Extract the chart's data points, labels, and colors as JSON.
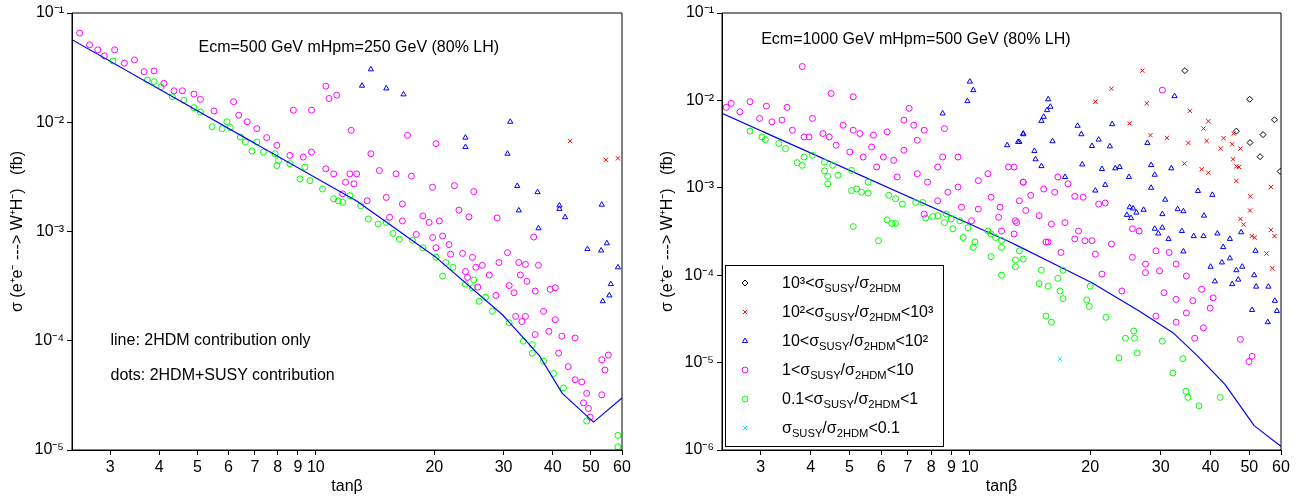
{
  "chart_data": [
    {
      "type": "scatter",
      "xlabel": "tanβ",
      "ylabel": "σ (e⁺e⁻ ---> W⁺H⁻)   (fb)",
      "log": "xy",
      "grid": false,
      "legend": false,
      "annotations": [
        "Ecm=500 GeV mHpm=250 GeV (80% LH)",
        "line: 2HDM contribution only",
        "dots: 2HDM+SUSY contribution"
      ],
      "xlim": [
        2.4,
        60
      ],
      "ylim": [
        1e-05,
        0.1
      ],
      "xticks": [
        3,
        4,
        5,
        6,
        7,
        8,
        9,
        10,
        20,
        30,
        40,
        50,
        60
      ],
      "yticks": [
        {
          "value": 1e-05,
          "label": "10⁻⁵"
        },
        {
          "value": 0.0001,
          "label": "10⁻⁴"
        },
        {
          "value": 0.001,
          "label": "10⁻³"
        },
        {
          "value": 0.01,
          "label": "10⁻²"
        },
        {
          "value": 0.1,
          "label": "10⁻¹"
        }
      ],
      "series": [
        {
          "type": "line",
          "color": "#0000ff",
          "marker": "none",
          "x": [
            2.4,
            12.7,
            20.2,
            29.8,
            36.9,
            42.3,
            50.8,
            60
          ],
          "values": [
            0.057,
            0.0019,
            0.00058,
            0.000173,
            7.4e-05,
            3.3e-05,
            1.8e-05,
            3e-05
          ]
        },
        {
          "type": "scatter",
          "color": "#ff00ff",
          "marker": "circle",
          "x": [
            2.51,
            2.66,
            2.79,
            3.08,
            2.9,
            3.26,
            3.46,
            3.66,
            3.88,
            4.11,
            4.36,
            4.58,
            4.9,
            5.09,
            5.51,
            6.18,
            6.37,
            6.69,
            7.08,
            7.5,
            7.96,
            8.77,
            8.59,
            9.29,
            9.75,
            9.75,
            10.6,
            10.8,
            11.3,
            10.6,
            11.1,
            12.2,
            12.3,
            11.9,
            12.5,
            13.8,
            17.1,
            20.2,
            12.7,
            14.5,
            16.0,
            17.5,
            19.8,
            22.5,
            25.2,
            11.7,
            13.5,
            15.1,
            16.6,
            18.7,
            19.4,
            20.6,
            23.1,
            24.5,
            28.9,
            35.8,
            15.4,
            16.6,
            18.0,
            19.8,
            21.0,
            21.8,
            23.6,
            25.0,
            26.5,
            29.2,
            30.7,
            32.8,
            34.1,
            36.8,
            20.2,
            22.0,
            24.0,
            25.5,
            27.6,
            28.7,
            31.0,
            31.9,
            33.1,
            34.4,
            36.1,
            39.4,
            40.6,
            25.8,
            24.3,
            32.2,
            34.1,
            33.4,
            36.1,
            37.9,
            39.1,
            40.6,
            42.2,
            45.6,
            41.4,
            43.8,
            45.6,
            47.4,
            48.8,
            49.3,
            53.3,
            54.3,
            55.4,
            53.3,
            47.9,
            49.8
          ],
          "values": [
            0.0655,
            0.0512,
            0.046,
            0.046,
            0.0405,
            0.0347,
            0.0372,
            0.029,
            0.0295,
            0.0227,
            0.0194,
            0.0194,
            0.0181,
            0.0162,
            0.0127,
            0.0154,
            0.0116,
            0.0101,
            0.00875,
            0.00723,
            0.00614,
            0.0129,
            0.00497,
            0.0048,
            0.0129,
            0.00533,
            0.0214,
            0.0165,
            0.0177,
            0.00375,
            0.00337,
            0.00337,
            0.00844,
            0.00282,
            0.00273,
            0.00515,
            0.00758,
            0.00637,
            0.00337,
            0.00361,
            0.00337,
            0.00321,
            0.00254,
            0.00263,
            0.00232,
            0.00221,
            0.00191,
            0.00205,
            0.00179,
            0.00139,
            0.00121,
            0.00125,
            0.00157,
            0.00136,
            0.00133,
            0.00089,
            0.00135,
            0.00125,
            0.00094,
            0.00088,
            0.00091,
            0.00076,
            0.00063,
            0.00058,
            0.00049,
            0.00052,
            0.00064,
            0.00052,
            0.0005,
            0.00049,
            0.00071,
            0.00062,
            0.00043,
            0.00047,
            0.0004,
            0.00026,
            0.00032,
            0.000275,
            0.0004,
            0.00035,
            0.000285,
            0.000295,
            0.000305,
            0.00031,
            0.00038,
            0.000167,
            0.000167,
            0.00015,
            0.000114,
            0.000186,
            0.000122,
            0.000156,
            0.00011,
            0.000106,
            7.7e-05,
            5.8e-05,
            4.4e-05,
            4.2e-05,
            3.3e-05,
            2.4e-05,
            6.7e-05,
            5.4e-05,
            7.4e-05,
            3.2e-05,
            2.7e-05,
            2e-05
          ]
        },
        {
          "type": "scatter",
          "color": "#00ff00",
          "marker": "circle",
          "x": [
            3.05,
            3.73,
            3.88,
            4.04,
            4.32,
            4.62,
            4.9,
            5.09,
            5.45,
            5.78,
            5.94,
            6.06,
            6.43,
            6.62,
            6.88,
            7.08,
            7.36,
            7.88,
            7.96,
            8.04,
            8.59,
            9.12,
            9.38,
            9.66,
            10.4,
            11.1,
            11.4,
            11.7,
            12.2,
            13.0,
            13.6,
            14.4,
            15.1,
            15.7,
            16.3,
            17.6,
            18.7,
            20.2,
            21.0,
            21.4,
            22.3,
            24.0,
            25.0,
            25.2,
            26.0,
            27.0,
            28.1,
            31.0,
            33.7,
            35.5,
            35.5,
            37.9,
            40.2,
            42.6,
            48.8,
            58.6,
            58.6
          ],
          "values": [
            0.0364,
            0.0244,
            0.0235,
            0.0211,
            0.0171,
            0.0159,
            0.0136,
            0.0124,
            0.0091,
            0.00875,
            0.0101,
            0.00893,
            0.00733,
            0.00659,
            0.00545,
            0.00659,
            0.00533,
            0.00515,
            0.00402,
            0.00447,
            0.00417,
            0.00303,
            0.00388,
            0.00292,
            0.00245,
            0.00199,
            0.00191,
            0.00185,
            0.00213,
            0.00172,
            0.0013,
            0.00117,
            0.00121,
            0.00096,
            0.00085,
            0.00083,
            0.00071,
            0.00058,
            0.00039,
            0.00052,
            0.00047,
            0.00033,
            0.000305,
            0.00036,
            0.00023,
            0.00025,
            0.000186,
            0.000146,
            9.9e-05,
            9.2e-05,
            7.7e-05,
            6.5e-05,
            5e-05,
            3.7e-05,
            1.84e-05,
            1.36e-05,
            1.07e-05
          ]
        },
        {
          "type": "scatter",
          "color": "#0000ff",
          "marker": "triangle",
          "x": [
            13.8,
            13.1,
            15.1,
            16.7,
            24.0,
            24.0,
            31.2,
            30.7,
            32.5,
            32.8,
            36.6,
            36.8,
            41.6,
            41.6,
            43.0,
            53.3,
            49.0,
            53.1,
            54.9,
            58.6,
            56.2,
            55.7,
            53.6
          ],
          "values": [
            0.0305,
            0.0216,
            0.0204,
            0.018,
            0.00723,
            0.00593,
            0.0101,
            0.00515,
            0.00261,
            0.00156,
            0.00229,
            0.00107,
            0.00173,
            0.00161,
            0.00135,
            0.00176,
            0.00069,
            0.00067,
            0.00078,
            0.00047,
            0.00033,
            0.00026,
            0.00023
          ]
        },
        {
          "type": "scatter",
          "color": "#ff0000",
          "marker": "cross",
          "x": [
            44.3,
            54.6,
            58.6
          ],
          "values": [
            0.00673,
            0.00453,
            0.00467
          ]
        }
      ]
    },
    {
      "type": "scatter",
      "xlabel": "tanβ",
      "ylabel": "σ (e⁺e⁻ ---> W⁺H⁻)   (fb)",
      "log": "xy",
      "grid": false,
      "legend": "bottom left",
      "annotations": [
        "Ecm=1000 GeV mHpm=500 GeV (80% LH)"
      ],
      "xlim": [
        2.4,
        60
      ],
      "ylim": [
        1e-06,
        0.1
      ],
      "xticks": [
        3,
        4,
        5,
        6,
        7,
        8,
        9,
        10,
        20,
        30,
        40,
        50,
        60
      ],
      "yticks": [
        {
          "value": 1e-06,
          "label": "10⁻⁶"
        },
        {
          "value": 1e-05,
          "label": "10⁻⁵"
        },
        {
          "value": 0.0001,
          "label": "10⁻⁴"
        },
        {
          "value": 0.001,
          "label": "10⁻³"
        },
        {
          "value": 0.01,
          "label": "10⁻²"
        },
        {
          "value": 0.1,
          "label": "10⁻¹"
        }
      ],
      "series": [
        {
          "type": "scatter",
          "name": "10³<σ$_{SUSY}$/σ$_{2HDM}$",
          "color": "#000000",
          "marker": "diamond",
          "x": [
            34.5,
            50.1,
            57.8,
            54.1,
            50.2,
            53.2,
            59.7,
            46.4
          ],
          "values": [
            0.0219,
            0.0103,
            0.006,
            0.00406,
            0.00329,
            0.00227,
            0.00154,
            0.00445
          ]
        },
        {
          "type": "scatter",
          "name": "10²<σ$_{SUSY}$/σ$_{2HDM}$<10³",
          "color": "#ff0000",
          "marker": "cross",
          "x": [
            27.0,
            22.6,
            20.6,
            27.7,
            25.1,
            28.3,
            31.1,
            35.5,
            39.5,
            38.4,
            35.2,
            39.1,
            42.4,
            43.1,
            45.3,
            45.7,
            47.5,
            34.4,
            38.0,
            39.5,
            45.5,
            46.4,
            47.1,
            46.4,
            50.3,
            50.2,
            56.6,
            47.5,
            48.4,
            50.7,
            51.6,
            56.6,
            57.8,
            55.2,
            57.1
          ],
          "values": [
            0.0219,
            0.0136,
            0.00966,
            0.00925,
            0.00545,
            0.004,
            0.00372,
            0.0076,
            0.00578,
            0.00476,
            0.00326,
            0.00344,
            0.00281,
            0.00369,
            0.00315,
            0.00418,
            0.00281,
            0.00189,
            0.00163,
            0.00149,
            0.00212,
            0.00176,
            0.00173,
            0.0012,
            0.0008,
            0.00055,
            0.00102,
            0.00044,
            0.00038,
            0.00028,
            0.00027,
            0.00033,
            0.00028,
            0.000177,
            0.00012
          ]
        },
        {
          "type": "scatter",
          "name": "10<σ$_{SUSY}$/σ$_{2HDM}$<10²",
          "color": "#0000ff",
          "marker": "triangle",
          "x": [
            8.55,
            10.0,
            10.2,
            9.86,
            12.4,
            13.3,
            13.6,
            15.7,
            15.9,
            15.6,
            15.3,
            15.1,
            13.6,
            13.2,
            16.1,
            14.5,
            14.6,
            15.1,
            17.3,
            18.6,
            19.0,
            19.1,
            20.2,
            20.6,
            21.0,
            21.4,
            21.8,
            22.4,
            22.7,
            23.1,
            23.7,
            25.0,
            25.1,
            24.7,
            25.3,
            25.6,
            26.1,
            27.2,
            27.8,
            28.4,
            28.4,
            29.0,
            29.0,
            29.6,
            30.3,
            30.3,
            30.8,
            31.4,
            31.9,
            32.5,
            33.1,
            33.9,
            34.2,
            34.2,
            36.3,
            37.2,
            38.4,
            38.5,
            40.0,
            40.4,
            41.0,
            41.6,
            42.7,
            43.0,
            44.7,
            44.7,
            45.3,
            46.4,
            46.9,
            47.7,
            48.0,
            50.8,
            51.4,
            51.8,
            52.0,
            55.6,
            55.8,
            57.9,
            58.6
          ],
          "values": [
            0.0071,
            0.0164,
            0.0131,
            0.0098,
            0.00307,
            0.00335,
            0.00418,
            0.0103,
            0.00846,
            0.00774,
            0.00649,
            0.00583,
            0.0041,
            0.00335,
            0.00341,
            0.00264,
            0.00212,
            0.00177,
            0.00133,
            0.00512,
            0.0041,
            0.00185,
            0.00301,
            0.00093,
            0.00356,
            0.00164,
            0.00108,
            0.00298,
            0.00535,
            0.00167,
            0.00173,
            0.00133,
            0.0006,
            0.00049,
            0.00045,
            0.00058,
            0.00052,
            0.00056,
            0.00326,
            0.00182,
            0.001,
            0.00141,
            0.00034,
            0.0003,
            0.00035,
            0.0005,
            0.00073,
            0.00026,
            0.00167,
            0.0112,
            0.00057,
            0.00032,
            0.00054,
            0.000187,
            0.00028,
            0.00092,
            0.00028,
            0.00048,
            0.000125,
            0.00083,
            8.5e-05,
            0.0003,
            0.00014,
            0.00021,
            0.000156,
            0.00026,
            7.9e-05,
            0.000114,
            8.9e-05,
            0.00031,
            0.000125,
            4e-05,
            0.0001,
            0.00019,
            7.4e-05,
            2.9e-05,
            7.4e-05,
            5.1e-05,
            3.9e-05
          ]
        },
        {
          "type": "scatter",
          "name": "1<σ$_{SUSY}$/σ$_{2HDM}$<10",
          "color": "#ff00ff",
          "marker": "circle",
          "x": [
            2.46,
            2.53,
            2.66,
            2.82,
            3.1,
            2.98,
            3.2,
            3.39,
            3.49,
            3.6,
            3.81,
            3.85,
            4.04,
            3.96,
            4.29,
            4.5,
            4.45,
            4.63,
            4.82,
            5.11,
            5.11,
            5.01,
            5.31,
            5.41,
            5.68,
            5.74,
            5.85,
            6.21,
            6.08,
            6.45,
            6.84,
            6.58,
            7.05,
            6.84,
            7.24,
            7.39,
            7.69,
            7.39,
            7.84,
            8.31,
            8.55,
            8.64,
            8.81,
            9.34,
            9.34,
            9.53,
            10.1,
            10.5,
            11.1,
            11.3,
            11.9,
            12.0,
            12.5,
            13.0,
            13.3,
            13.6,
            8.31,
            7.69,
            10.5,
            11.8,
            12.9,
            13.6,
            14.2,
            15.3,
            16.6,
            17.6,
            18.3,
            19.2,
            13.1,
            13.8,
            14.9,
            16.0,
            17.3,
            18.7,
            20.2,
            21.0,
            21.8,
            12.9,
            15.7,
            16.9,
            18.3,
            19.4,
            20.6,
            21.4,
            22.6,
            24.0,
            25.5,
            25.5,
            26.5,
            27.5,
            27.5,
            29.2,
            29.8,
            30.6,
            31.5,
            32.8,
            32.8,
            34.8,
            36.1,
            38.0,
            40.6,
            39.9,
            29.2,
            32.8,
            34.8,
            36.5,
            38.4,
            30.3,
            47.5,
            49.9,
            50.8,
            15.5,
            16.3
          ],
          "values": [
            0.00832,
            0.00925,
            0.0074,
            0.00966,
            0.00861,
            0.00621,
            0.00569,
            0.00594,
            0.00832,
            0.00456,
            0.0244,
            0.00382,
            0.00621,
            0.00382,
            0.00418,
            0.012,
            0.00382,
            0.00307,
            0.0052,
            0.011,
            0.00456,
            0.00257,
            0.00418,
            0.00225,
            0.00293,
            0.004,
            0.00173,
            0.00437,
            0.00225,
            0.00206,
            0.00594,
            0.00133,
            0.0081,
            0.00269,
            0.0052,
            0.0035,
            0.00456,
            0.00145,
            0.00116,
            0.00173,
            0.00225,
            0.00476,
            0.00089,
            0.00225,
            0.00102,
            0.0006,
            0.00042,
            0.00121,
            0.00145,
            0.00078,
            0.0006,
            0.00032,
            0.00173,
            0.00042,
            0.00071,
            0.00116,
            0.00071,
            0.0005,
            0.00057,
            0.00046,
            0.00173,
            0.00116,
            0.00082,
            0.00097,
            0.00133,
            0.00111,
            0.0008,
            0.00078,
            0.0004,
            0.00055,
            0.00048,
            0.000385,
            0.0004,
            0.00032,
            0.000248,
            0.00065,
            0.00067,
            0.000296,
            0.00024,
            0.000182,
            0.00026,
            0.000248,
            0.000174,
            0.000103,
            0.000227,
            6.6e-05,
            0.00016,
            0.00034,
            0.00032,
            0.000134,
            0.000107,
            0.00019,
            0.000112,
            6.3e-05,
            0.000182,
            0.000134,
            5.3e-05,
            9.8e-05,
            5.1e-05,
            6.9e-05,
            5.5e-05,
            4.2e-05,
            3.4e-05,
            2.9e-05,
            3.7e-05,
            1.9e-05,
            2.5e-05,
            0.0131,
            1.84e-05,
            1.03e-05,
            1.18e-05,
            0.00024,
            0.00089
          ]
        },
        {
          "type": "scatter",
          "name": "0.1<σ$_{SUSY}$/σ$_{2HDM}$<1",
          "color": "#00ff00",
          "marker": "circle",
          "x": [
            2.82,
            3.02,
            3.08,
            3.33,
            3.46,
            3.7,
            3.85,
            3.81,
            4.04,
            4.33,
            4.33,
            4.41,
            4.54,
            4.41,
            4.68,
            5.06,
            5.06,
            5.21,
            5.36,
            5.57,
            5.57,
            5.11,
            5.91,
            6.27,
            6.52,
            6.78,
            6.21,
            6.38,
            6.52,
            7.32,
            7.62,
            7.76,
            8.07,
            8.31,
            8.64,
            8.73,
            8.98,
            9.07,
            9.44,
            9.62,
            9.9,
            10.2,
            10.3,
            11.1,
            11.3,
            11.3,
            11.6,
            12.0,
            12.0,
            13.0,
            13.0,
            13.3,
            13.6,
            12.0,
            15.1,
            14.9,
            15.7,
            16.6,
            16.8,
            17.1,
            17.1,
            15.5,
            16.0,
            19.6,
            19.9,
            20.0,
            21.9,
            24.5,
            25.7,
            25.8,
            26.2,
            23.6,
            30.3,
            32.2,
            34.1,
            34.7,
            35.1,
            37.4,
            42.3
          ],
          "values": [
            0.00445,
            0.00382,
            0.00356,
            0.00321,
            0.00281,
            0.00194,
            0.00225,
            0.00181,
            0.00236,
            0.00197,
            0.00156,
            0.00135,
            0.00181,
            0.00111,
            0.00139,
            0.00158,
            0.00093,
            0.00097,
            0.00089,
            0.00087,
            0.00116,
            0.00036,
            0.000248,
            0.00082,
            0.00075,
            0.00065,
            0.00043,
            0.00039,
            0.00039,
            0.00068,
            0.00068,
            0.00045,
            0.00047,
            0.00048,
            0.0004,
            0.0005,
            0.00044,
            0.00034,
            0.00042,
            0.00027,
            0.00035,
            0.000208,
            0.00024,
            0.00032,
            0.000296,
            0.000163,
            0.00027,
            0.000208,
            0.00025,
            0.000149,
            0.000125,
            0.00019,
            0.000153,
            0.0001,
            0.000114,
            8e-05,
            7.5e-05,
            9.2e-05,
            6.6e-05,
            5.4e-05,
            0.000114,
            3.4e-05,
            2.9e-05,
            5.2e-05,
            4.4e-05,
            7.5e-05,
            3.3e-05,
            1.9e-05,
            2.3e-05,
            1.9e-05,
            1.29e-05,
            1.13e-05,
            1.76e-05,
            7.6e-06,
            1.11e-05,
            4.7e-06,
            4e-06,
            3.2e-06,
            4e-06
          ]
        },
        {
          "type": "scatter",
          "name": "σ$_{SUSY}$/σ$_{2HDM}$<0.1",
          "color": "#00ffff",
          "marker": "cross",
          "x": [
            16.8
          ],
          "values": [
            1.1e-05
          ]
        },
        {
          "type": "line",
          "color": "#0000ff",
          "marker": "none",
          "x": [
            2.4,
            12.6,
            20.2,
            26.5,
            32.2,
            37.2,
            43.5,
            51.4,
            60
          ],
          "values": [
            0.0071,
            0.00024,
            8.2e-05,
            3.9e-05,
            2.2e-05,
            1.18e-05,
            5.6e-06,
            1.9e-06,
            1.1e-06
          ]
        }
      ]
    }
  ]
}
